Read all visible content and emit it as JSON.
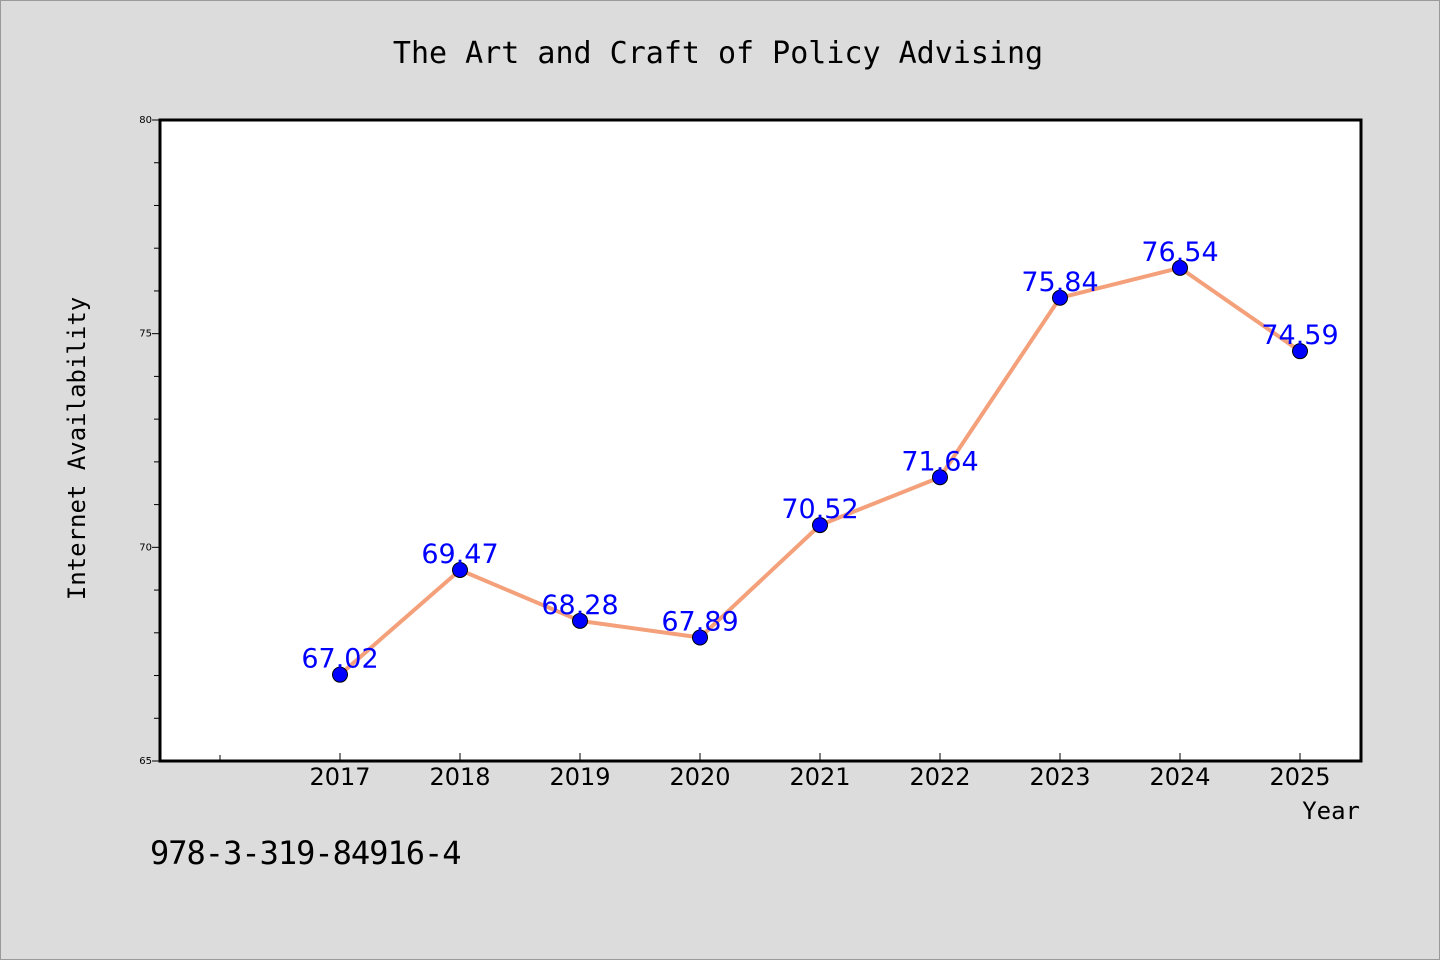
{
  "chart_data": {
    "type": "line",
    "title": "The Art and Craft of Policy Advising",
    "xlabel": "Year",
    "ylabel": "Internet Availability",
    "categories": [
      "2017",
      "2018",
      "2019",
      "2020",
      "2021",
      "2022",
      "2023",
      "2024",
      "2025"
    ],
    "series": [
      {
        "values": [
          67.02,
          69.47,
          68.28,
          67.89,
          70.52,
          71.64,
          75.84,
          76.54,
          74.59
        ],
        "labels": [
          "67.02",
          "69.47",
          "68.28",
          "67.89",
          "70.52",
          "71.64",
          "75.84",
          "76.54",
          "74.59"
        ],
        "line_color": "#f4a07a",
        "marker_color": "#0000ff"
      }
    ],
    "ylim": [
      65,
      80
    ],
    "yticks": [
      "65",
      "70",
      "75",
      "80"
    ],
    "grid": false,
    "legend": "none"
  },
  "footer": {
    "isbn": "978-3-319-84916-4"
  },
  "colors": {
    "background": "#dcdcdc",
    "plot_area": "#ffffff",
    "line": "#f4a07a",
    "marker": "#0000ff",
    "data_label": "#0000ff"
  }
}
